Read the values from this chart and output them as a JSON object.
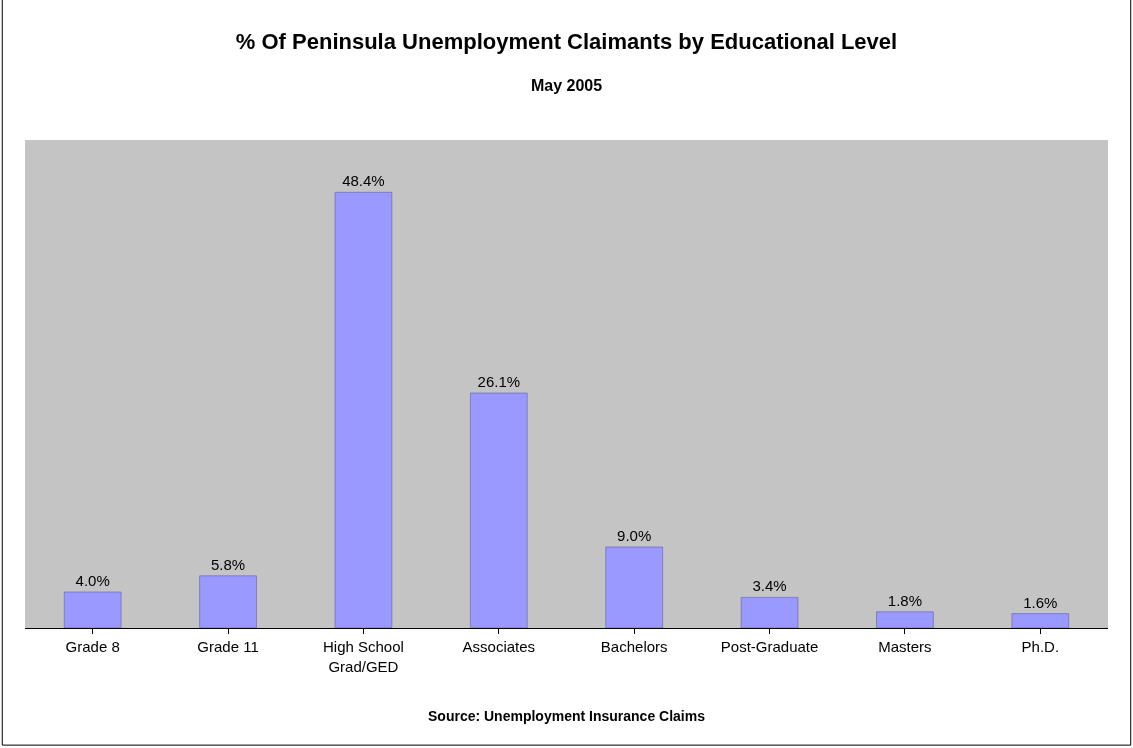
{
  "chart_data": {
    "type": "bar",
    "title": "% Of Peninsula Unemployment Claimants by Educational Level",
    "subtitle": "May 2005",
    "categories": [
      "Grade 8",
      "Grade 11",
      "High School Grad/GED",
      "Associates",
      "Bachelors",
      "Post-Graduate",
      "Masters",
      "Ph.D."
    ],
    "values": [
      4.0,
      5.8,
      48.4,
      26.1,
      9.0,
      3.4,
      1.8,
      1.6
    ],
    "value_labels": [
      "4.0%",
      "5.8%",
      "48.4%",
      "26.1%",
      "9.0%",
      "3.4%",
      "1.8%",
      "1.6%"
    ],
    "color": "#9999ff",
    "annotations": [
      "Source: Unemployment Insurance Claims"
    ],
    "grid": false,
    "legend": false,
    "tick_labels": "x"
  }
}
